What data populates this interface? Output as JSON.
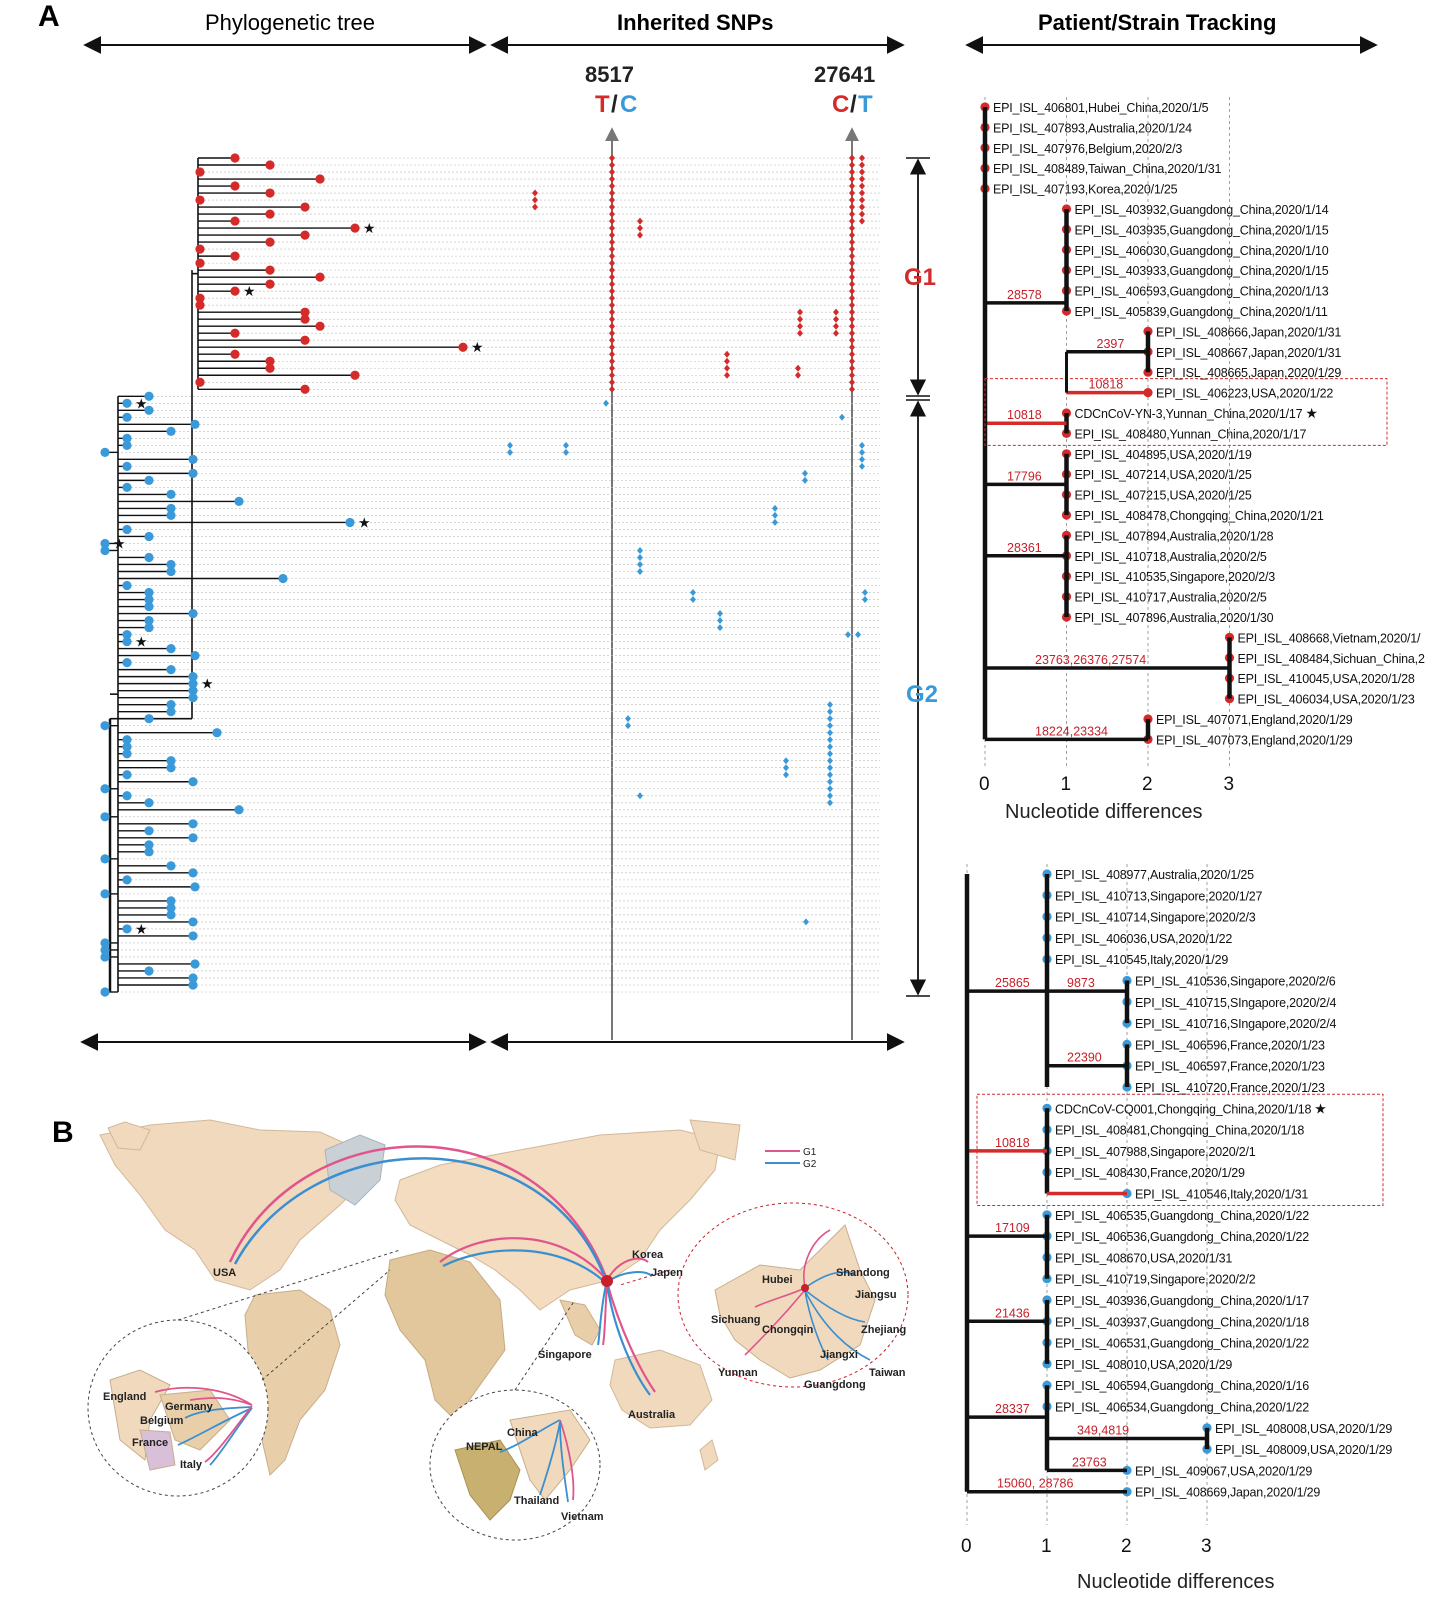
{
  "panels": {
    "a": "A",
    "b": "B"
  },
  "headers": {
    "tree": "Phylogenetic tree",
    "snps": "Inherited SNPs",
    "tracking": "Patient/Strain Tracking"
  },
  "snp_positions": [
    {
      "position": "8517",
      "allele1": "T",
      "allele2": "C"
    },
    {
      "position": "27641",
      "allele1": "C",
      "allele2": "T"
    }
  ],
  "groups": {
    "g1": "G1",
    "g2": "G2"
  },
  "colors": {
    "g1": "#d42a2a",
    "g2": "#3a9ad9",
    "branch_highlight": "#d42a2a",
    "map_land": "#f3dcc0",
    "map_water": "#ffffff"
  },
  "top_panel": {
    "x_ticks": [
      "0",
      "1",
      "2",
      "3"
    ],
    "x_label": "Nucleotide differences",
    "mutations": [
      "28578",
      "2397",
      "10818",
      "10818",
      "17796",
      "28361",
      "23763,26376,27574",
      "18224,23334"
    ],
    "strains": [
      "EPI_ISL_406801,Hubei_China,2020/1/5",
      "EPI_ISL_407893,Australia,2020/1/24",
      "EPI_ISL_407976,Belgium,2020/2/3",
      "EPI_ISL_408489,Taiwan_China,2020/1/31",
      "EPI_ISL_407193,Korea,2020/1/25",
      "EPI_ISL_403932,Guangdong_China,2020/1/14",
      "EPI_ISL_403935,Guangdong_China,2020/1/15",
      "EPI_ISL_406030,Guangdong_China,2020/1/10",
      "EPI_ISL_403933,Guangdong_China,2020/1/15",
      "EPI_ISL_406593,Guangdong_China,2020/1/13",
      "EPI_ISL_405839,Guangdong_China,2020/1/11",
      "EPI_ISL_408666,Japan,2020/1/31",
      "EPI_ISL_408667,Japan,2020/1/31",
      "EPI_ISL_408665,Japan,2020/1/29",
      "EPI_ISL_406223,USA,2020/1/22",
      "CDCnCoV-YN-3,Yunnan_China,2020/1/17",
      "EPI_ISL_408480,Yunnan_China,2020/1/17",
      "EPI_ISL_404895,USA,2020/1/19",
      "EPI_ISL_407214,USA,2020/1/25",
      "EPI_ISL_407215,USA,2020/1/25",
      "EPI_ISL_408478,Chongqing_China,2020/1/21",
      "EPI_ISL_407894,Australia,2020/1/28",
      "EPI_ISL_410718,Australia,2020/2/5",
      "EPI_ISL_410535,Singapore,2020/2/3",
      "EPI_ISL_410717,Australia,2020/2/5",
      "EPI_ISL_407896,Australia,2020/1/30",
      "EPI_ISL_408668,Vietnam,2020/1/",
      "EPI_ISL_408484,Sichuan_China,2",
      "EPI_ISL_410045,USA,2020/1/28",
      "EPI_ISL_406034,USA,2020/1/23",
      "EPI_ISL_407071,England,2020/1/29",
      "EPI_ISL_407073,England,2020/1/29"
    ]
  },
  "bottom_panel": {
    "x_ticks": [
      "0",
      "1",
      "2",
      "3"
    ],
    "x_label": "Nucleotide differences",
    "mutations": [
      "25865",
      "9873",
      "22390",
      "10818",
      "17109",
      "21436",
      "28337",
      "349,4819",
      "23763",
      "15060, 28786"
    ],
    "strains": [
      "EPI_ISL_408977,Australia,2020/1/25",
      "EPI_ISL_410713,Singapore,2020/1/27",
      "EPI_ISL_410714,Singapore,2020/2/3",
      "EPI_ISL_406036,USA,2020/1/22",
      "EPI_ISL_410545,Italy,2020/1/29",
      "EPI_ISL_410536,Singapore,2020/2/6",
      "EPI_ISL_410715,SIngapore,2020/2/4",
      "EPI_ISL_410716,SIngapore,2020/2/4",
      "EPI_ISL_406596,France,2020/1/23",
      "EPI_ISL_406597,France,2020/1/23",
      "EPI_ISL_410720,France,2020/1/23",
      "CDCnCoV-CQ001,Chongqing_China,2020/1/18",
      "EPI_ISL_408481,Chongqing_China,2020/1/18",
      "EPI_ISL_407988,Singapore,2020/2/1",
      "EPI_ISL_408430,France,2020/1/29",
      "EPI_ISL_410546,Italy,2020/1/31",
      "EPI_ISL_406535,Guangdong_China,2020/1/22",
      "EPI_ISL_406536,Guangdong_China,2020/1/22",
      "EPI_ISL_408670,USA,2020/1/31",
      "EPI_ISL_410719,Singapore,2020/2/2",
      "EPI_ISL_403936,Guangdong_China,2020/1/17",
      "EPI_ISL_403937,Guangdong_China,2020/1/18",
      "EPI_ISL_406531,Guangdong_China,2020/1/22",
      "EPI_ISL_408010,USA,2020/1/29",
      "EPI_ISL_406594,Guangdong_China,2020/1/16",
      "EPI_ISL_406534,Guangdong_China,2020/1/22",
      "EPI_ISL_408008,USA,2020/1/29",
      "EPI_ISL_408009,USA,2020/1/29",
      "EPI_ISL_409067,USA,2020/1/29",
      "EPI_ISL_408669,Japan,2020/1/29"
    ]
  },
  "map": {
    "legend": [
      "G1",
      "G2"
    ],
    "places": {
      "usa": "USA",
      "korea": "Korea",
      "japen": "Japen",
      "singapore": "Singapore",
      "australia": "Australia",
      "england": "England",
      "germany": "Germany",
      "belgium": "Belgium",
      "france": "France",
      "italy": "Italy",
      "china": "China",
      "nepal": "NEPAL",
      "thailand": "Thailand",
      "vietnam": "Vietnam",
      "hubei": "Hubei",
      "shandong": "Shandong",
      "jiangsu": "Jiangsu",
      "sichuang": "Sichuang",
      "chongqin": "Chongqin",
      "zhejiang": "Zhejiang",
      "jiangxi": "Jiangxi",
      "yunnan": "Yunnan",
      "taiwan": "Taiwan",
      "guangdong": "Guangdong"
    }
  }
}
